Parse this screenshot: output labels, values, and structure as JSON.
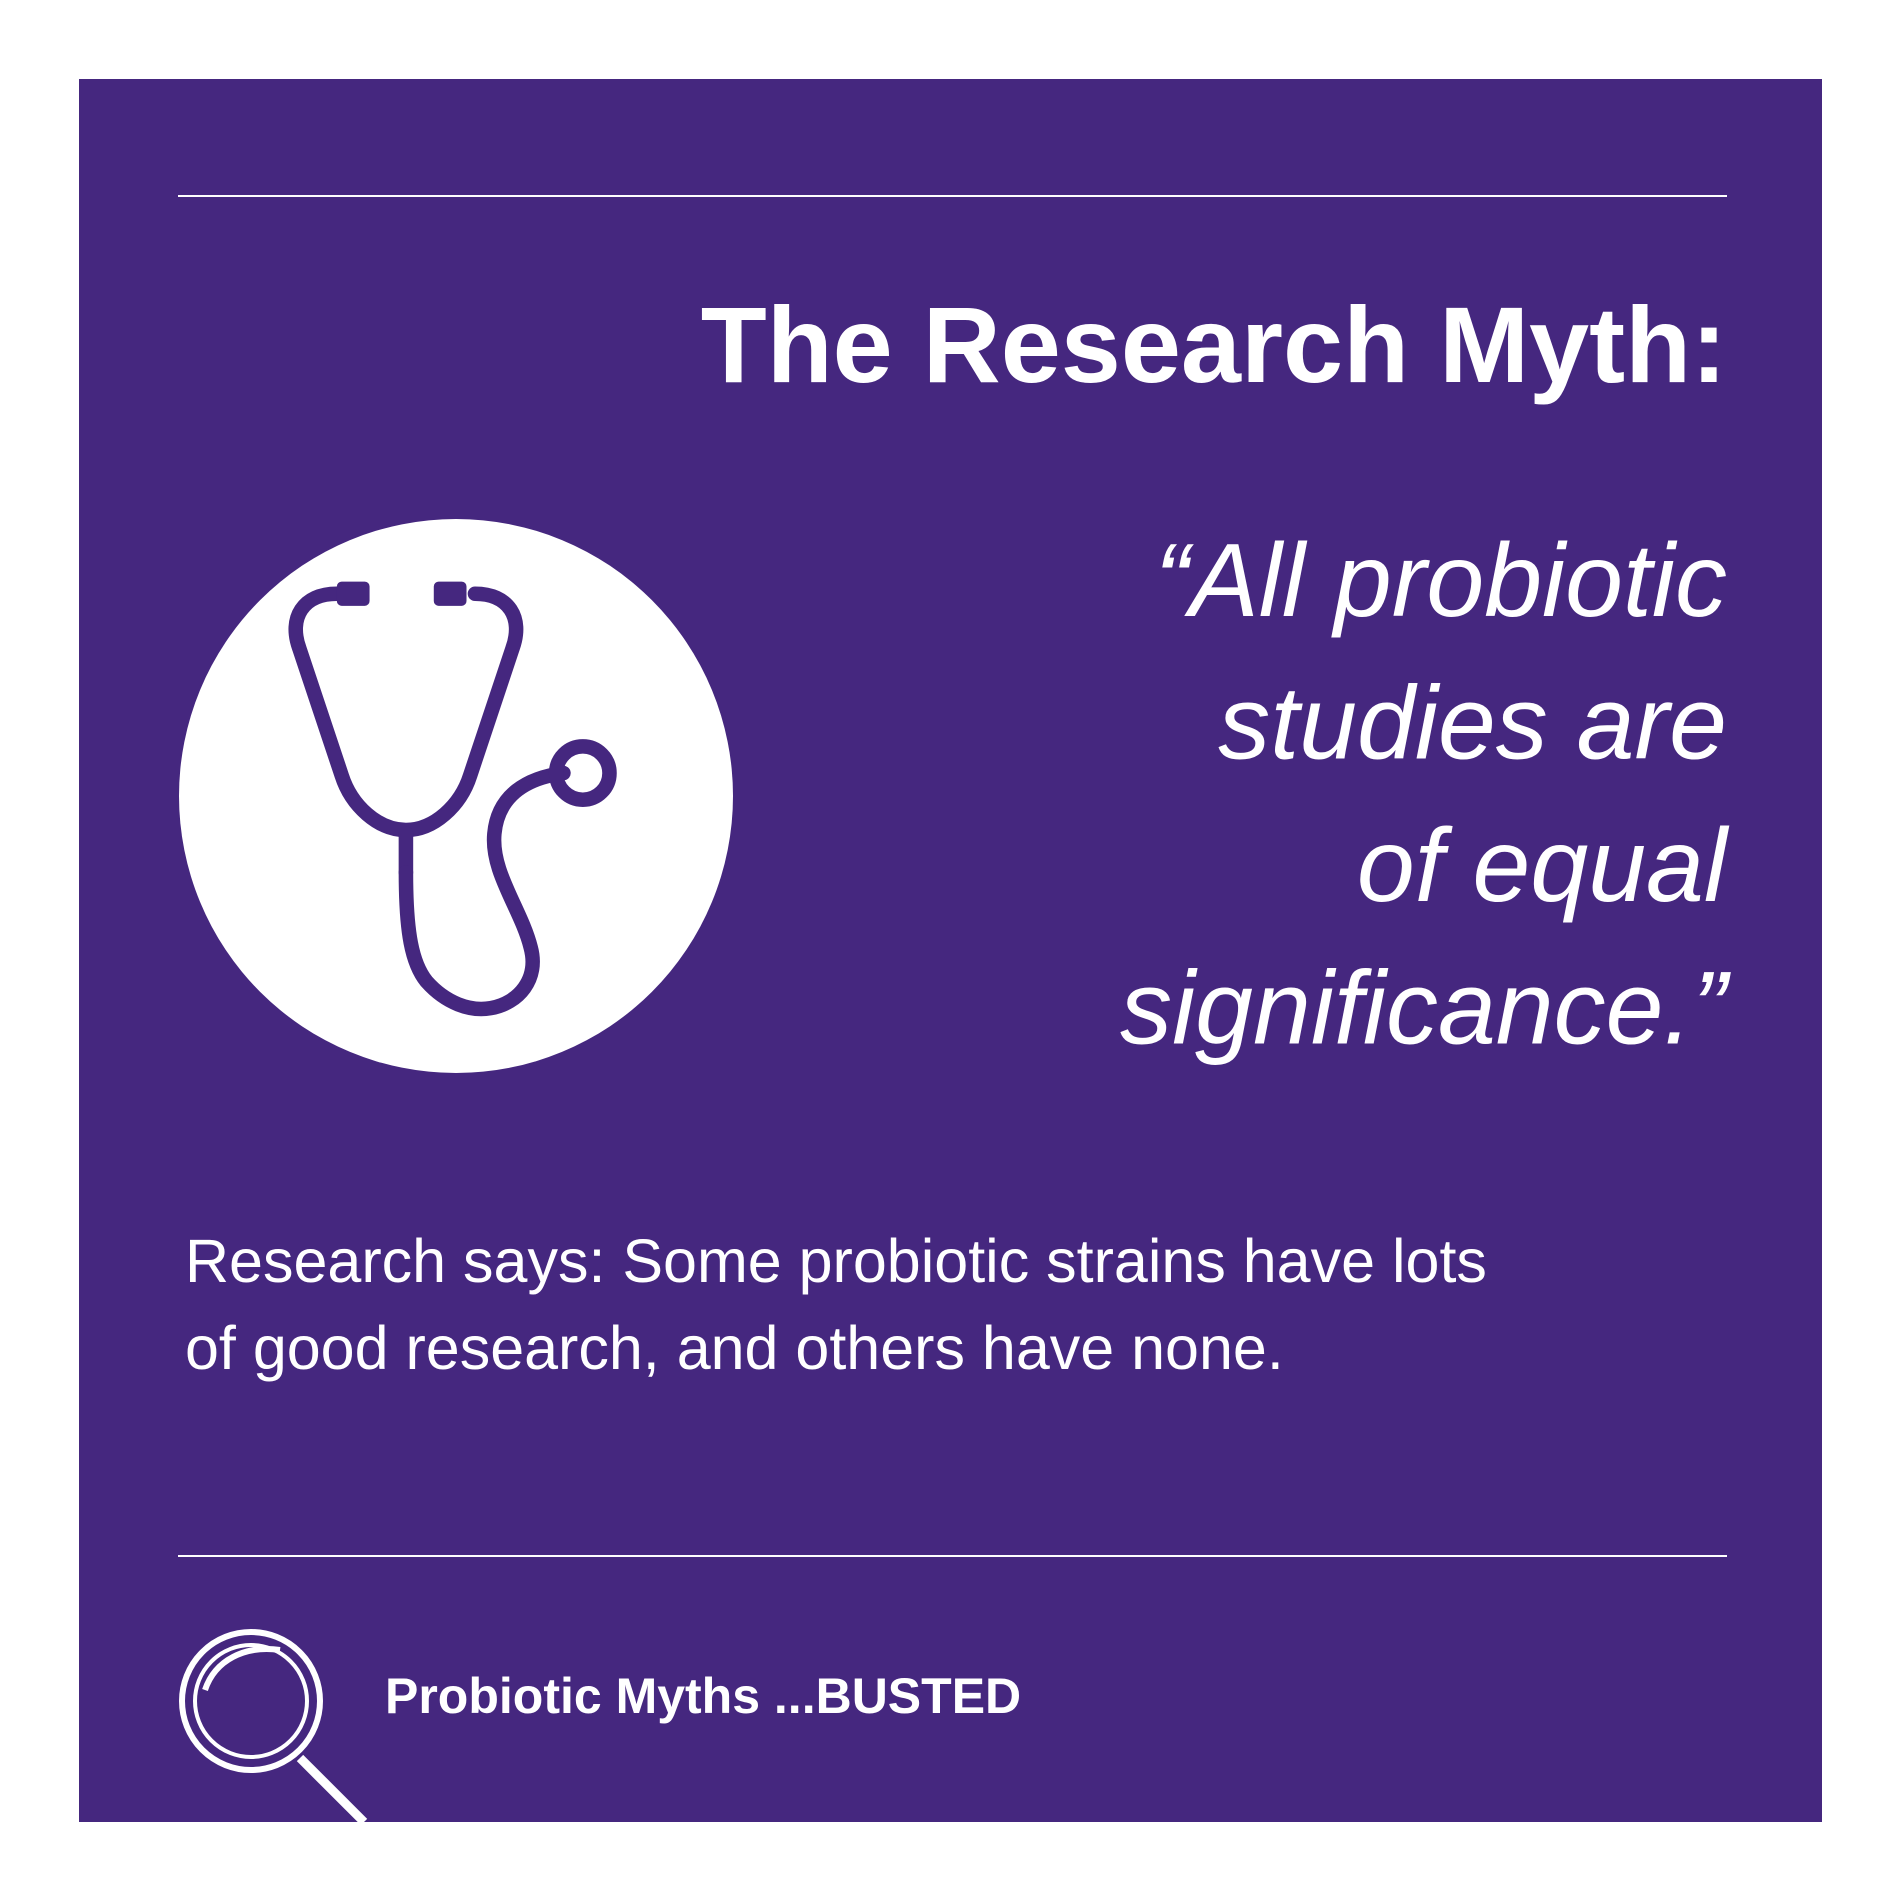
{
  "header": {
    "title": "The Research Myth:"
  },
  "quote": {
    "lines": [
      "“All probiotic",
      "studies are",
      "of equal",
      "significance.”"
    ]
  },
  "body": {
    "lines": [
      "Research says: Some probiotic strains have lots",
      "of good research, and others have none."
    ]
  },
  "footer": {
    "label": "Probiotic Myths ...BUSTED"
  }
}
